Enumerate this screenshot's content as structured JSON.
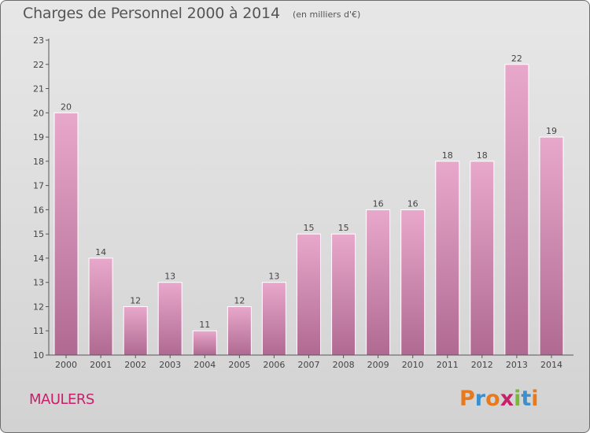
{
  "chart_data": {
    "type": "bar",
    "title": "Charges de Personnel 2000 à 2014",
    "subtitle": "(en milliers d'€)",
    "categories": [
      "2000",
      "2001",
      "2002",
      "2003",
      "2004",
      "2005",
      "2006",
      "2007",
      "2008",
      "2009",
      "2010",
      "2011",
      "2012",
      "2013",
      "2014"
    ],
    "values": [
      20,
      14,
      12,
      13,
      11,
      12,
      13,
      15,
      15,
      16,
      16,
      18,
      18,
      22,
      19
    ],
    "ylim": [
      10,
      23
    ],
    "yticks": [
      10,
      11,
      12,
      13,
      14,
      15,
      16,
      17,
      18,
      19,
      20,
      21,
      22,
      23
    ],
    "grid": false,
    "bar_color_top": "#e8a8cb",
    "bar_color_bottom": "#b06a92"
  },
  "footer": {
    "commune": "MAULERS",
    "logo": "Proxiti",
    "logo_colors": [
      "#e8791d",
      "#3a8fd0",
      "#e8791d",
      "#c8216b",
      "#7ab83a",
      "#3a8fd0",
      "#e8791d"
    ]
  }
}
